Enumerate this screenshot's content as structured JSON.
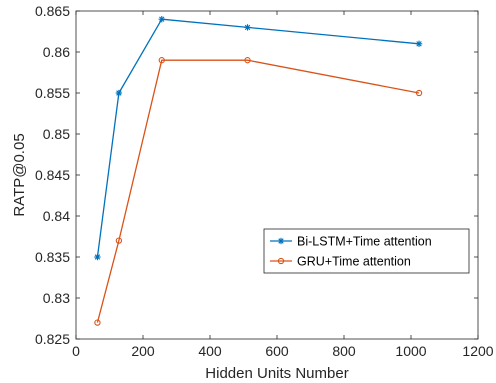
{
  "chart_data": {
    "type": "line",
    "title": "",
    "xlabel": "Hidden Units Number",
    "ylabel": "RATP@0.05",
    "xlim": [
      0,
      1200
    ],
    "ylim": [
      0.825,
      0.865
    ],
    "xticks": [
      0,
      200,
      400,
      600,
      800,
      1000,
      1200
    ],
    "xtick_labels": [
      "0",
      "200",
      "400",
      "600",
      "800",
      "1000",
      "1200"
    ],
    "yticks": [
      0.825,
      0.83,
      0.835,
      0.84,
      0.845,
      0.85,
      0.855,
      0.86,
      0.865
    ],
    "ytick_labels": [
      "0.825",
      "0.83",
      "0.835",
      "0.84",
      "0.845",
      "0.85",
      "0.855",
      "0.86",
      "0.865"
    ],
    "grid": false,
    "legend_position": "center-right",
    "series": [
      {
        "name": "Bi-LSTM+Time attention",
        "marker": "asterisk",
        "color": "#0072bd",
        "x": [
          64,
          128,
          256,
          512,
          1024
        ],
        "y": [
          0.835,
          0.855,
          0.864,
          0.863,
          0.861
        ]
      },
      {
        "name": "GRU+Time attention",
        "marker": "circle",
        "color": "#d95319",
        "x": [
          64,
          128,
          256,
          512,
          1024
        ],
        "y": [
          0.827,
          0.837,
          0.859,
          0.859,
          0.855
        ]
      }
    ]
  }
}
